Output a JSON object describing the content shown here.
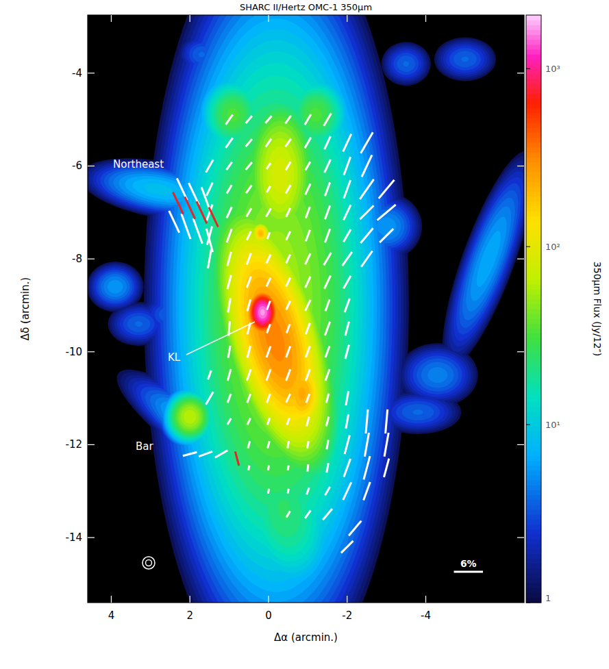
{
  "chart_data": {
    "type": "polarization_map",
    "title": "SHARC II/Hertz   OMC-1   350μm",
    "xlabel": "Δα (arcmin.)",
    "ylabel": "Δδ (arcmin.)",
    "xlim": [
      4.6,
      -6.5
    ],
    "ylim": [
      -15.4,
      -2.75
    ],
    "xticks": [
      4,
      2,
      0,
      -2,
      -4
    ],
    "yticks": [
      -4,
      -6,
      -8,
      -10,
      -12,
      -14
    ],
    "colorbar": {
      "label": "350μm Flux (Jy/12″)",
      "range": [
        1,
        2000
      ],
      "log": true,
      "ticks": [
        1,
        {
          "value": 10,
          "label": "10¹"
        },
        {
          "value": 100,
          "label": "10²"
        },
        {
          "value": 1000,
          "label": "10³"
        }
      ]
    },
    "annotations": [
      "Northeast",
      "KL",
      "Bar"
    ],
    "scale_bar": {
      "value": 6,
      "label": "6%",
      "length": 0.74
    },
    "components": [
      {
        "x": -0.2,
        "y": -9.0,
        "sx": 1.2,
        "sy": 3.0,
        "tilt": 0,
        "peak": 60
      },
      {
        "x": 0.9,
        "y": -4.9,
        "sx": 0.45,
        "sy": 0.45,
        "tilt": 0,
        "peak": 35
      },
      {
        "x": -1.2,
        "y": -4.9,
        "sx": 0.45,
        "sy": 0.45,
        "tilt": 0,
        "peak": 35
      },
      {
        "x": -0.15,
        "y": -9.7,
        "sx": 0.55,
        "sy": 1.3,
        "tilt": 15,
        "peak": 350
      },
      {
        "x": 0.15,
        "y": -9.15,
        "sx": 0.18,
        "sy": 0.22,
        "tilt": 0,
        "peak": 1800
      },
      {
        "x": -0.85,
        "y": -10.9,
        "sx": 0.3,
        "sy": 0.45,
        "tilt": 0,
        "peak": 250
      },
      {
        "x": 0.2,
        "y": -7.45,
        "sx": 0.12,
        "sy": 0.12,
        "tilt": 0,
        "peak": 220
      },
      {
        "x": -0.3,
        "y": -6.2,
        "sx": 0.5,
        "sy": 0.9,
        "tilt": 0,
        "peak": 90
      },
      {
        "x": 2.8,
        "y": -6.5,
        "sx": 1.0,
        "sy": 0.3,
        "tilt": -10,
        "peak": 9
      },
      {
        "x": 2.0,
        "y": -11.4,
        "sx": 0.3,
        "sy": 0.28,
        "tilt": 0,
        "peak": 70
      },
      {
        "x": 0.9,
        "y": -12.2,
        "sx": 1.6,
        "sy": 0.3,
        "tilt": -35,
        "peak": 14
      },
      {
        "x": -0.4,
        "y": -13.4,
        "sx": 0.7,
        "sy": 1.0,
        "tilt": 10,
        "peak": 25
      },
      {
        "x": -5.6,
        "y": -8.0,
        "sx": 0.35,
        "sy": 1.3,
        "tilt": -20,
        "peak": 7
      },
      {
        "x": -3.0,
        "y": -7.3,
        "sx": 0.5,
        "sy": 0.4,
        "tilt": 0,
        "peak": 6
      },
      {
        "x": -4.3,
        "y": -10.5,
        "sx": 0.6,
        "sy": 0.4,
        "tilt": 0,
        "peak": 5
      },
      {
        "x": -3.8,
        "y": -11.3,
        "sx": 0.7,
        "sy": 0.3,
        "tilt": 0,
        "peak": 4
      },
      {
        "x": 3.9,
        "y": -8.6,
        "sx": 0.4,
        "sy": 0.3,
        "tilt": 0,
        "peak": 6
      },
      {
        "x": 3.3,
        "y": -9.4,
        "sx": 0.5,
        "sy": 0.3,
        "tilt": 0,
        "peak": 4
      },
      {
        "x": 2.5,
        "y": -9.2,
        "sx": 0.5,
        "sy": 0.3,
        "tilt": 0,
        "peak": 4
      },
      {
        "x": 1.7,
        "y": -3.6,
        "sx": 0.4,
        "sy": 0.3,
        "tilt": 0,
        "peak": 4
      },
      {
        "x": -3.5,
        "y": -3.8,
        "sx": 0.4,
        "sy": 0.3,
        "tilt": 0,
        "peak": 4
      },
      {
        "x": -5.0,
        "y": -3.7,
        "sx": 0.5,
        "sy": 0.3,
        "tilt": 0,
        "peak": 4
      }
    ],
    "vector_sets": [
      {
        "color": "#ffffff",
        "vectors": [
          [
            1.0,
            -5.0,
            2.5,
            -35
          ],
          [
            0.5,
            -5.0,
            2,
            -40
          ],
          [
            0,
            -5.0,
            2,
            -40
          ],
          [
            -0.5,
            -5.0,
            2,
            -35
          ],
          [
            -1.0,
            -5.0,
            2.5,
            -30
          ],
          [
            -1.5,
            -5.0,
            3,
            -30
          ],
          [
            1.0,
            -5.5,
            2.5,
            -35
          ],
          [
            0.5,
            -5.5,
            2,
            -40
          ],
          [
            0,
            -5.5,
            2,
            -35
          ],
          [
            -0.5,
            -5.5,
            2,
            -35
          ],
          [
            -1.0,
            -5.5,
            2.5,
            -30
          ],
          [
            -1.5,
            -5.5,
            3,
            -25
          ],
          [
            -2.0,
            -5.5,
            4,
            -25
          ],
          [
            -2.5,
            -5.5,
            5,
            -30
          ],
          [
            1.5,
            -6.0,
            3,
            -30
          ],
          [
            1.0,
            -6.0,
            2,
            -35
          ],
          [
            0.5,
            -6.0,
            2,
            -40
          ],
          [
            0,
            -6.0,
            1.5,
            -35
          ],
          [
            -0.5,
            -6.0,
            2,
            -30
          ],
          [
            -1.0,
            -6.0,
            2,
            -30
          ],
          [
            -1.5,
            -6.0,
            3,
            -25
          ],
          [
            -2.0,
            -6.0,
            4,
            -20
          ],
          [
            -2.5,
            -6.0,
            5,
            -25
          ],
          [
            1.5,
            -6.5,
            3,
            -25
          ],
          [
            1.0,
            -6.5,
            2,
            -30
          ],
          [
            0.5,
            -6.5,
            2,
            -35
          ],
          [
            0,
            -6.5,
            1.5,
            -30
          ],
          [
            -0.5,
            -6.5,
            2,
            -30
          ],
          [
            -1.0,
            -6.5,
            2.5,
            -25
          ],
          [
            -1.5,
            -6.5,
            3,
            -20
          ],
          [
            -2.0,
            -6.5,
            4,
            -20
          ],
          [
            -2.5,
            -6.5,
            5,
            -35
          ],
          [
            -3.0,
            -6.5,
            5,
            -40
          ],
          [
            1.5,
            -7.0,
            3.5,
            -20
          ],
          [
            1.0,
            -7.0,
            2.5,
            -25
          ],
          [
            0.5,
            -7.0,
            2,
            -30
          ],
          [
            0,
            -7.0,
            2,
            -30
          ],
          [
            -0.5,
            -7.0,
            2,
            -25
          ],
          [
            -1.0,
            -7.0,
            2.5,
            -20
          ],
          [
            -1.5,
            -7.0,
            3,
            -20
          ],
          [
            -2.0,
            -7.0,
            3.5,
            -25
          ],
          [
            -2.5,
            -7.0,
            4,
            -45
          ],
          [
            -3.0,
            -7.0,
            5,
            -50
          ],
          [
            1.5,
            -7.5,
            4,
            -15
          ],
          [
            1.0,
            -7.5,
            3,
            -20
          ],
          [
            0.5,
            -7.5,
            2,
            -25
          ],
          [
            0,
            -7.5,
            1.5,
            -20
          ],
          [
            -0.5,
            -7.5,
            2,
            -25
          ],
          [
            -1.0,
            -7.5,
            2.5,
            -20
          ],
          [
            -1.5,
            -7.5,
            3,
            -20
          ],
          [
            -2.0,
            -7.5,
            3,
            -30
          ],
          [
            -2.5,
            -7.5,
            4,
            -40
          ],
          [
            -3.0,
            -7.5,
            4,
            -45
          ],
          [
            1.5,
            -8.0,
            4,
            -10
          ],
          [
            1.0,
            -8.0,
            3,
            -15
          ],
          [
            0.5,
            -8.0,
            2.5,
            -20
          ],
          [
            0,
            -8.0,
            2,
            -25
          ],
          [
            -0.5,
            -8.0,
            2,
            -25
          ],
          [
            -1.0,
            -8.0,
            2.5,
            -25
          ],
          [
            -1.5,
            -8.0,
            3,
            -30
          ],
          [
            -2.0,
            -8.0,
            3.5,
            -35
          ],
          [
            -2.5,
            -8.0,
            4,
            -35
          ],
          [
            1.0,
            -8.5,
            3,
            -15
          ],
          [
            0.5,
            -8.5,
            2.5,
            -20
          ],
          [
            0,
            -8.5,
            2,
            -25
          ],
          [
            -0.5,
            -8.5,
            2,
            -25
          ],
          [
            -1.0,
            -8.5,
            2.5,
            -25
          ],
          [
            -1.5,
            -8.5,
            3,
            -25
          ],
          [
            -2.0,
            -8.5,
            3,
            -30
          ],
          [
            1.0,
            -9.0,
            3,
            -10
          ],
          [
            0.5,
            -9.0,
            2.5,
            -15
          ],
          [
            0,
            -9.0,
            2,
            -20
          ],
          [
            -0.5,
            -9.0,
            2,
            -25
          ],
          [
            -1.0,
            -9.0,
            2.5,
            -25
          ],
          [
            -1.5,
            -9.0,
            2.5,
            -20
          ],
          [
            -2.0,
            -9.0,
            3,
            -20
          ],
          [
            1.0,
            -9.5,
            3,
            -5
          ],
          [
            0.5,
            -9.5,
            2.5,
            -15
          ],
          [
            0,
            -9.5,
            2,
            -20
          ],
          [
            -0.5,
            -9.5,
            2,
            -20
          ],
          [
            -1.0,
            -9.5,
            2.5,
            -20
          ],
          [
            -1.5,
            -9.5,
            3,
            -20
          ],
          [
            -2.0,
            -9.5,
            3,
            -15
          ],
          [
            1.0,
            -10.0,
            2.5,
            -10
          ],
          [
            0.5,
            -10.0,
            2.5,
            -15
          ],
          [
            0,
            -10.0,
            2.5,
            -20
          ],
          [
            -0.5,
            -10.0,
            2.5,
            -20
          ],
          [
            -1.0,
            -10.0,
            2.5,
            -20
          ],
          [
            -1.5,
            -10.0,
            2.5,
            -20
          ],
          [
            -2.0,
            -10.0,
            3,
            -15
          ],
          [
            1.5,
            -10.5,
            2,
            -20
          ],
          [
            1.0,
            -10.5,
            2.5,
            -15
          ],
          [
            0.5,
            -10.5,
            2.5,
            -20
          ],
          [
            0,
            -10.5,
            2.5,
            -20
          ],
          [
            -0.5,
            -10.5,
            2.5,
            -20
          ],
          [
            -1.0,
            -10.5,
            2.5,
            -20
          ],
          [
            -1.5,
            -10.5,
            2.5,
            -20
          ],
          [
            1.5,
            -11.0,
            3,
            -30
          ],
          [
            1.0,
            -11.0,
            2,
            -20
          ],
          [
            0.5,
            -11.0,
            2,
            -20
          ],
          [
            0,
            -11.0,
            2,
            -20
          ],
          [
            -0.5,
            -11.0,
            2,
            -25
          ],
          [
            -1.0,
            -11.0,
            2,
            -20
          ],
          [
            -1.5,
            -11.0,
            2,
            -15
          ],
          [
            -2.0,
            -11.0,
            3,
            -10
          ],
          [
            1.0,
            -11.5,
            1.5,
            -30
          ],
          [
            0.5,
            -11.5,
            1.5,
            -25
          ],
          [
            0,
            -11.5,
            1.5,
            -20
          ],
          [
            -0.5,
            -11.5,
            1.5,
            -20
          ],
          [
            -1.0,
            -11.5,
            2,
            -15
          ],
          [
            -1.5,
            -11.5,
            2,
            -15
          ],
          [
            -2.0,
            -11.5,
            3,
            -10
          ],
          [
            -2.5,
            -11.5,
            5,
            -5
          ],
          [
            -3.0,
            -11.5,
            5,
            -5
          ],
          [
            0.5,
            -12.0,
            1.5,
            -15
          ],
          [
            0,
            -12.0,
            1.5,
            -15
          ],
          [
            -0.5,
            -12.0,
            1.5,
            -10
          ],
          [
            -1.0,
            -12.0,
            1.5,
            -10
          ],
          [
            -1.5,
            -12.0,
            2,
            -10
          ],
          [
            -2.0,
            -12.0,
            4,
            -15
          ],
          [
            -2.5,
            -12.0,
            5,
            -10
          ],
          [
            -3.0,
            -12.0,
            5,
            -10
          ],
          [
            0.5,
            -12.5,
            1,
            -10
          ],
          [
            0,
            -12.5,
            1,
            -10
          ],
          [
            -0.5,
            -12.5,
            1,
            -10
          ],
          [
            -1.0,
            -12.5,
            1.5,
            -5
          ],
          [
            -1.5,
            -12.5,
            2,
            -10
          ],
          [
            -2.0,
            -12.5,
            4,
            -20
          ],
          [
            -2.5,
            -12.5,
            5,
            -15
          ],
          [
            -3.0,
            -12.5,
            4,
            -15
          ],
          [
            0,
            -13.0,
            1,
            -10
          ],
          [
            -0.5,
            -13.0,
            1,
            -10
          ],
          [
            -1.0,
            -13.0,
            1.5,
            -20
          ],
          [
            -1.5,
            -13.0,
            2,
            -30
          ],
          [
            -2.0,
            -13.0,
            4,
            -25
          ],
          [
            -2.5,
            -13.0,
            4,
            -20
          ],
          [
            -0.5,
            -13.5,
            1.5,
            -30
          ],
          [
            -1.0,
            -13.5,
            2,
            -35
          ],
          [
            -1.5,
            -13.5,
            3,
            -40
          ],
          [
            -2.2,
            -13.8,
            4,
            -40
          ],
          [
            -2.0,
            -14.2,
            3.5,
            -45
          ],
          [
            2.0,
            -12.2,
            3,
            -75
          ],
          [
            1.6,
            -12.2,
            3,
            -70
          ],
          [
            1.2,
            -12.2,
            3,
            -60
          ],
          [
            2.2,
            -6.5,
            5,
            25
          ],
          [
            1.9,
            -6.6,
            5,
            25
          ],
          [
            1.6,
            -6.7,
            5,
            20
          ],
          [
            2.4,
            -7.2,
            5,
            25
          ],
          [
            2.1,
            -7.3,
            5.5,
            20
          ],
          [
            1.8,
            -7.4,
            5.5,
            20
          ],
          [
            1.5,
            -7.6,
            5,
            15
          ]
        ]
      },
      {
        "color": "#e02828",
        "vectors": [
          [
            2.3,
            -6.8,
            5,
            25
          ],
          [
            2.0,
            -6.9,
            5,
            25
          ],
          [
            1.7,
            -7.0,
            5,
            25
          ],
          [
            1.4,
            -7.1,
            4.5,
            25
          ],
          [
            0.8,
            -12.3,
            3,
            15
          ]
        ]
      }
    ]
  }
}
